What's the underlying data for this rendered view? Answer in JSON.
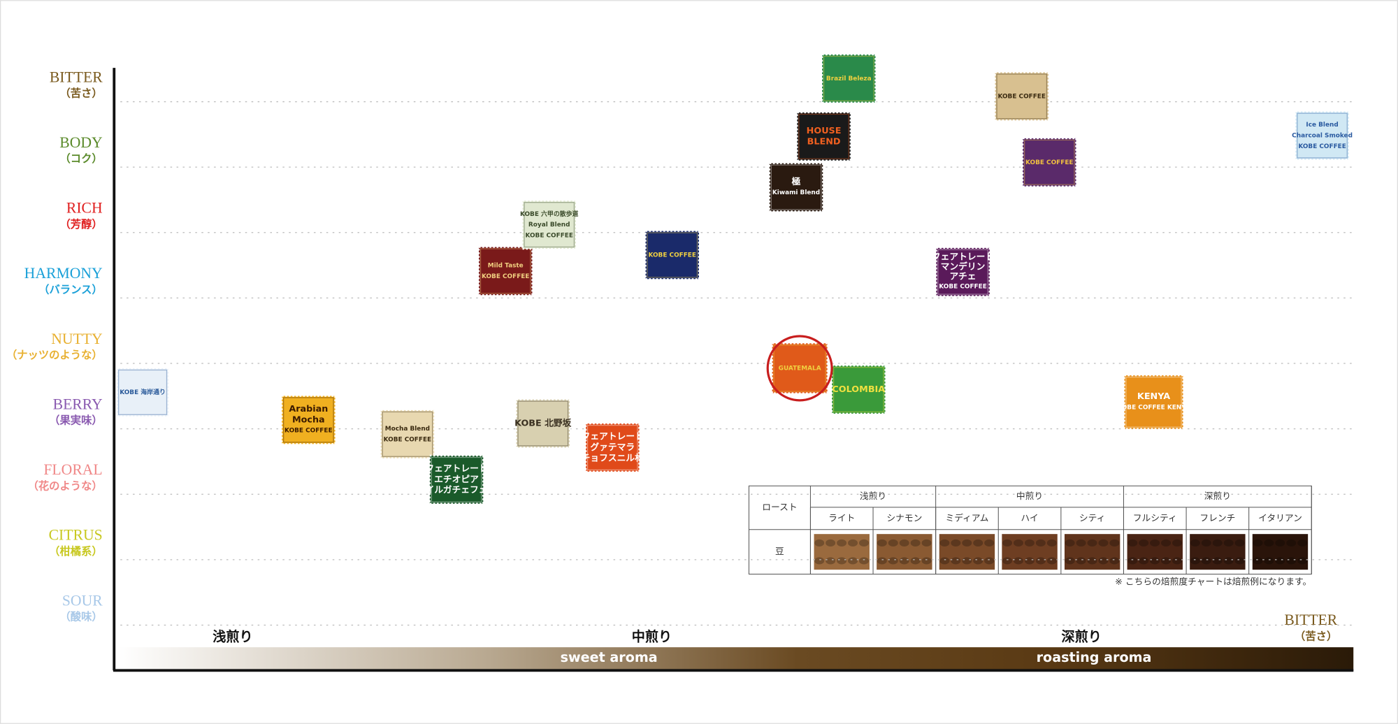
{
  "y_axis": [
    {
      "label": "BITTER",
      "sub": "（苦さ）"
    },
    {
      "label": "BODY",
      "sub": "（コク）"
    },
    {
      "label": "RICH",
      "sub": "（芳醇）"
    },
    {
      "label": "HARMONY",
      "sub": "（バランス）"
    },
    {
      "label": "NUTTY",
      "sub": "（ナッツのような）"
    },
    {
      "label": "BERRY",
      "sub": "（果実味）"
    },
    {
      "label": "FLORAL",
      "sub": "（花のような）"
    },
    {
      "label": "CITRUS",
      "sub": "（柑橘系）"
    },
    {
      "label": "SOUR",
      "sub": "（酸味）"
    }
  ],
  "x_axis": {
    "light": "浅煎り",
    "medium": "中煎り",
    "dark": "深煎り",
    "sweet": "sweet aroma",
    "roasting": "roasting aroma",
    "end_label": "BITTER",
    "end_sub": "（苦さ）"
  },
  "stamps": [
    {
      "lines": [
        "KOBE 海岸通り"
      ]
    },
    {
      "lines": [
        "Arabian",
        "Mocha",
        "KOBE COFFEE"
      ]
    },
    {
      "lines": [
        "Mocha Blend",
        "KOBE COFFEE"
      ]
    },
    {
      "lines": [
        "フェアトレード",
        "エチオピア",
        "イルガチェフェ"
      ]
    },
    {
      "lines": [
        "Mild Taste",
        "KOBE COFFEE"
      ]
    },
    {
      "lines": [
        "KOBE 六甲の散歩道",
        "Royal Blend",
        "KOBE COFFEE"
      ]
    },
    {
      "lines": [
        "KOBE 北野坂"
      ]
    },
    {
      "lines": [
        "フェアトレード",
        "グァテマラ",
        "チョフスニル村"
      ]
    },
    {
      "lines": [
        "KOBE COFFEE"
      ]
    },
    {
      "lines": [
        "Brazil Beleza"
      ]
    },
    {
      "lines": [
        "HOUSE",
        "BLEND"
      ]
    },
    {
      "lines": [
        "極",
        "Kiwami Blend"
      ]
    },
    {
      "lines": [
        "GUATEMALA"
      ]
    },
    {
      "lines": [
        "COLOMBIA"
      ]
    },
    {
      "lines": [
        "KOBE COFFEE"
      ]
    },
    {
      "lines": [
        "KOBE COFFEE"
      ]
    },
    {
      "lines": [
        "フェアトレード",
        "マンデリン",
        "アチェ",
        "KOBE COFFEE"
      ]
    },
    {
      "lines": [
        "KENYA",
        "KOBE COFFEE KENYA"
      ]
    },
    {
      "lines": [
        "Ice Blend",
        "Charcoal Smoked",
        "KOBE COFFEE"
      ]
    }
  ],
  "roast_table": {
    "header": "ロースト",
    "groups": [
      "浅煎り",
      "中煎り",
      "深煎り"
    ],
    "levels": [
      "ライト",
      "シナモン",
      "ミディアム",
      "ハイ",
      "シティ",
      "フルシティ",
      "フレンチ",
      "イタリアン"
    ],
    "row_label": "豆"
  },
  "note": "※ こちらの焙煎度チャートは焙煎例になります。"
}
